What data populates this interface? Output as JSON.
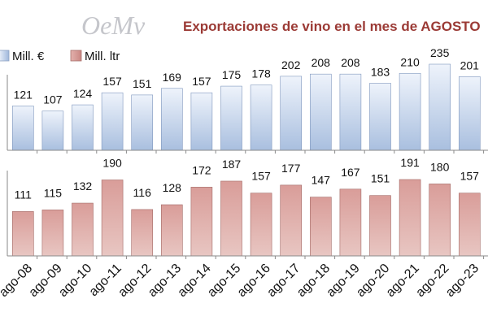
{
  "logo": "OeMv",
  "chart_data": {
    "type": "bar",
    "title": "Exportaciones de vino en el mes de AGOSTO",
    "categories": [
      "ago-08",
      "ago-09",
      "ago-10",
      "ago-11",
      "ago-12",
      "ago-13",
      "ago-14",
      "ago-15",
      "ago-16",
      "ago-17",
      "ago-18",
      "ago-19",
      "ago-20",
      "ago-21",
      "ago-22",
      "ago-23"
    ],
    "series": [
      {
        "name": "Mill. €",
        "color": "#c4d5ee",
        "values": [
          121,
          107,
          124,
          157,
          151,
          169,
          157,
          175,
          178,
          202,
          208,
          208,
          183,
          210,
          235,
          201
        ]
      },
      {
        "name": "Mill. ltr",
        "color": "#d39a97",
        "values": [
          111,
          115,
          132,
          190,
          116,
          128,
          172,
          187,
          157,
          177,
          147,
          167,
          151,
          191,
          180,
          157
        ]
      }
    ],
    "legend": "top-left",
    "grid": false,
    "xlabel": "",
    "ylabel": "",
    "title_color": "#9b3a35"
  }
}
